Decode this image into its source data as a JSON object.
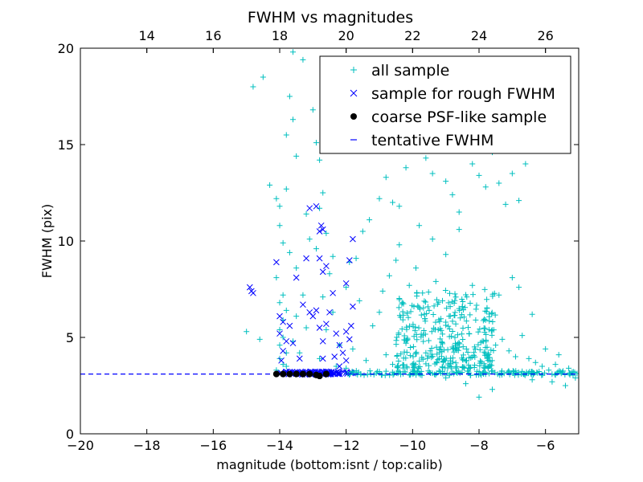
{
  "chart_data": {
    "type": "scatter",
    "title": "FWHM vs magnitudes",
    "xlabel": "magnitude (bottom:isnt / top:calib)",
    "ylabel": "FWHM (pix)",
    "xlim": [
      -20,
      -5
    ],
    "ylim": [
      0,
      20
    ],
    "x_ticks": [
      "−20",
      "−18",
      "−16",
      "−14",
      "−12",
      "−10",
      "−8",
      "−6"
    ],
    "x_tick_values": [
      -20,
      -18,
      -16,
      -14,
      -12,
      -10,
      -8,
      -6
    ],
    "y_ticks": [
      "0",
      "5",
      "10",
      "15",
      "20"
    ],
    "y_tick_values": [
      0,
      5,
      10,
      15,
      20
    ],
    "top_axis": {
      "ticks": [
        "14",
        "16",
        "18",
        "20",
        "22",
        "24",
        "26"
      ],
      "tick_values": [
        14,
        16,
        18,
        20,
        22,
        24,
        26
      ],
      "offset": 32.0
    },
    "grid": false,
    "legend_position": "top-right",
    "legend": [
      {
        "label": "all sample",
        "marker": "plus",
        "color": "#00bfbf"
      },
      {
        "label": "sample for rough FWHM",
        "marker": "x",
        "color": "#0000ff"
      },
      {
        "label": "coarse PSF-like sample",
        "marker": "dot",
        "color": "#000000"
      },
      {
        "label": "tentative FWHM",
        "marker": "dashed-line",
        "color": "#0000ff"
      }
    ],
    "series": [
      {
        "name": "all sample",
        "marker": "plus",
        "color": "#00bfbf",
        "points": [
          [
            -15.0,
            5.3
          ],
          [
            -14.6,
            4.9
          ],
          [
            -14.8,
            18.0
          ],
          [
            -14.5,
            18.5
          ],
          [
            -13.6,
            19.8
          ],
          [
            -13.3,
            19.4
          ],
          [
            -14.3,
            12.9
          ],
          [
            -14.1,
            12.2
          ],
          [
            -14.0,
            11.8
          ],
          [
            -14.0,
            10.8
          ],
          [
            -13.9,
            9.9
          ],
          [
            -14.1,
            8.1
          ],
          [
            -13.9,
            7.2
          ],
          [
            -14.0,
            6.8
          ],
          [
            -13.8,
            6.4
          ],
          [
            -13.9,
            5.9
          ],
          [
            -14.0,
            5.4
          ],
          [
            -13.9,
            5.0
          ],
          [
            -14.0,
            4.6
          ],
          [
            -13.8,
            4.2
          ],
          [
            -14.0,
            3.9
          ],
          [
            -13.9,
            3.6
          ],
          [
            -14.1,
            3.3
          ],
          [
            -13.8,
            3.5
          ],
          [
            -13.7,
            17.5
          ],
          [
            -13.6,
            16.3
          ],
          [
            -13.8,
            15.5
          ],
          [
            -13.5,
            14.4
          ],
          [
            -13.8,
            12.7
          ],
          [
            -13.7,
            9.4
          ],
          [
            -13.5,
            8.6
          ],
          [
            -13.3,
            7.2
          ],
          [
            -13.5,
            6.1
          ],
          [
            -13.2,
            5.5
          ],
          [
            -13.6,
            4.8
          ],
          [
            -13.4,
            4.2
          ],
          [
            -13.0,
            16.8
          ],
          [
            -12.9,
            15.1
          ],
          [
            -12.8,
            14.2
          ],
          [
            -12.7,
            12.5
          ],
          [
            -12.8,
            11.7
          ],
          [
            -12.6,
            10.4
          ],
          [
            -12.9,
            9.6
          ],
          [
            -12.5,
            8.3
          ],
          [
            -12.7,
            7.1
          ],
          [
            -12.4,
            6.3
          ],
          [
            -12.6,
            5.4
          ],
          [
            -12.2,
            4.6
          ],
          [
            -12.8,
            3.9
          ],
          [
            -12.3,
            3.5
          ],
          [
            -12.0,
            3.4
          ],
          [
            -11.8,
            4.4
          ],
          [
            -11.7,
            9.1
          ],
          [
            -11.5,
            10.5
          ],
          [
            -11.3,
            11.1
          ],
          [
            -11.0,
            12.2
          ],
          [
            -10.8,
            13.3
          ],
          [
            -10.6,
            12.0
          ],
          [
            -10.4,
            11.8
          ],
          [
            -10.2,
            13.8
          ],
          [
            -10.0,
            16.4
          ],
          [
            -9.8,
            15.2
          ],
          [
            -9.6,
            14.3
          ],
          [
            -9.4,
            13.5
          ],
          [
            -9.2,
            14.7
          ],
          [
            -9.0,
            13.1
          ],
          [
            -8.8,
            12.4
          ],
          [
            -8.6,
            11.5
          ],
          [
            -8.4,
            15.1
          ],
          [
            -8.2,
            14.0
          ],
          [
            -8.0,
            13.4
          ],
          [
            -7.8,
            12.8
          ],
          [
            -7.6,
            14.6
          ],
          [
            -7.4,
            13.0
          ],
          [
            -7.2,
            11.9
          ],
          [
            -7.0,
            13.5
          ],
          [
            -6.8,
            12.1
          ],
          [
            -6.6,
            14.0
          ],
          [
            -11.2,
            5.6
          ],
          [
            -11.0,
            6.3
          ],
          [
            -10.9,
            7.4
          ],
          [
            -10.7,
            8.2
          ],
          [
            -10.5,
            9.0
          ],
          [
            -10.3,
            6.8
          ],
          [
            -10.1,
            7.7
          ],
          [
            -9.9,
            8.6
          ],
          [
            -9.7,
            7.3
          ],
          [
            -9.5,
            6.4
          ],
          [
            -9.3,
            7.9
          ],
          [
            -9.1,
            6.9
          ],
          [
            -8.9,
            6.1
          ],
          [
            -8.7,
            5.7
          ],
          [
            -8.5,
            6.6
          ],
          [
            -8.3,
            5.2
          ],
          [
            -8.1,
            5.9
          ],
          [
            -7.9,
            4.8
          ],
          [
            -7.7,
            5.4
          ],
          [
            -7.5,
            4.6
          ],
          [
            -7.3,
            4.9
          ],
          [
            -7.1,
            4.3
          ],
          [
            -6.9,
            4.0
          ],
          [
            -6.7,
            5.1
          ],
          [
            -6.5,
            3.9
          ],
          [
            -6.3,
            3.7
          ],
          [
            -6.1,
            3.5
          ],
          [
            -5.9,
            3.3
          ],
          [
            -5.7,
            3.6
          ],
          [
            -5.5,
            3.2
          ],
          [
            -5.3,
            3.4
          ],
          [
            -5.1,
            2.9
          ],
          [
            -5.4,
            2.5
          ],
          [
            -5.8,
            2.7
          ],
          [
            -6.4,
            2.8
          ],
          [
            -7.6,
            2.3
          ],
          [
            -8.0,
            1.9
          ],
          [
            -8.4,
            2.6
          ],
          [
            -9.0,
            2.9
          ],
          [
            -10.0,
            3.3
          ],
          [
            -10.6,
            3.6
          ],
          [
            -11.4,
            3.8
          ],
          [
            -9.4,
            10.1
          ],
          [
            -9.0,
            9.3
          ],
          [
            -8.6,
            10.6
          ],
          [
            -9.8,
            10.8
          ],
          [
            -10.4,
            9.8
          ],
          [
            -7.4,
            7.2
          ],
          [
            -7.0,
            8.1
          ],
          [
            -6.8,
            7.6
          ],
          [
            -6.4,
            6.2
          ],
          [
            -6.0,
            4.4
          ],
          [
            -5.6,
            4.1
          ],
          [
            -8.2,
            7.7
          ],
          [
            -9.6,
            4.2
          ],
          [
            -9.2,
            3.9
          ],
          [
            -8.8,
            4.5
          ],
          [
            -8.4,
            3.8
          ],
          [
            -10.2,
            4.7
          ],
          [
            -10.8,
            4.1
          ],
          [
            -11.6,
            6.9
          ],
          [
            -12.0,
            7.6
          ],
          [
            -11.9,
            8.9
          ],
          [
            -12.4,
            9.2
          ],
          [
            -13.1,
            10.1
          ],
          [
            -13.2,
            11.4
          ]
        ]
      },
      {
        "name": "sample for rough FWHM",
        "marker": "x",
        "color": "#0000ff",
        "points": [
          [
            -14.9,
            7.6
          ],
          [
            -14.85,
            7.4
          ],
          [
            -14.8,
            7.3
          ],
          [
            -14.1,
            8.9
          ],
          [
            -14.0,
            6.1
          ],
          [
            -13.9,
            5.8
          ],
          [
            -14.0,
            5.2
          ],
          [
            -13.8,
            4.8
          ],
          [
            -13.9,
            4.3
          ],
          [
            -13.95,
            3.8
          ],
          [
            -13.7,
            5.6
          ],
          [
            -13.6,
            4.7
          ],
          [
            -13.5,
            8.1
          ],
          [
            -13.4,
            3.9
          ],
          [
            -13.2,
            9.1
          ],
          [
            -13.3,
            6.7
          ],
          [
            -13.1,
            6.3
          ],
          [
            -13.0,
            6.1
          ],
          [
            -13.1,
            11.7
          ],
          [
            -12.9,
            11.8
          ],
          [
            -12.8,
            10.5
          ],
          [
            -12.75,
            10.8
          ],
          [
            -12.7,
            10.6
          ],
          [
            -12.8,
            9.1
          ],
          [
            -12.7,
            8.4
          ],
          [
            -12.6,
            8.7
          ],
          [
            -12.9,
            6.4
          ],
          [
            -12.8,
            5.5
          ],
          [
            -12.7,
            4.8
          ],
          [
            -12.6,
            5.7
          ],
          [
            -12.5,
            6.3
          ],
          [
            -12.7,
            3.9
          ],
          [
            -12.4,
            7.3
          ],
          [
            -12.3,
            5.2
          ],
          [
            -12.2,
            4.6
          ],
          [
            -12.1,
            4.2
          ],
          [
            -12.0,
            3.8
          ],
          [
            -12.0,
            5.3
          ],
          [
            -11.9,
            4.9
          ],
          [
            -11.8,
            6.6
          ],
          [
            -11.9,
            9.0
          ],
          [
            -12.0,
            7.8
          ],
          [
            -11.8,
            10.1
          ],
          [
            -11.85,
            5.6
          ],
          [
            -12.2,
            3.5
          ],
          [
            -12.35,
            4.0
          ]
        ]
      },
      {
        "name": "coarse PSF-like sample",
        "marker": "dot",
        "color": "#000000",
        "points": [
          [
            -14.1,
            3.1
          ],
          [
            -13.9,
            3.1
          ],
          [
            -13.7,
            3.1
          ],
          [
            -13.5,
            3.1
          ],
          [
            -13.3,
            3.1
          ],
          [
            -13.1,
            3.1
          ],
          [
            -12.9,
            3.05
          ],
          [
            -12.8,
            3.0
          ],
          [
            -12.6,
            3.1
          ]
        ]
      }
    ],
    "reference_line": {
      "name": "tentative FWHM",
      "y": 3.1,
      "style": "dashed",
      "color": "#0000ff"
    },
    "dense_bands": [
      {
        "series": "sample for rough FWHM",
        "x_range": [
          -14.0,
          -11.8
        ],
        "y": 3.15,
        "spread": 0.08,
        "count": 90
      },
      {
        "series": "all sample",
        "x_range": [
          -12.0,
          -5.0
        ],
        "y": 3.15,
        "spread": 0.12,
        "count": 160
      },
      {
        "series": "all sample",
        "x_range": [
          -10.5,
          -7.5
        ],
        "y_range": [
          3.4,
          7.5
        ],
        "count": 320
      }
    ]
  }
}
